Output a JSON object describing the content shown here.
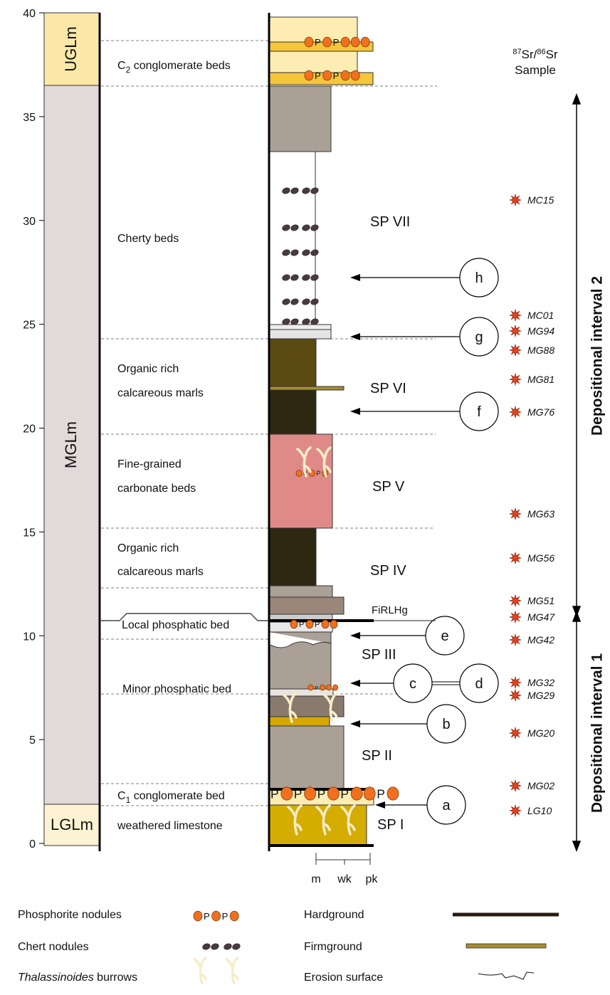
{
  "axis": {
    "ticks": [
      0,
      5,
      10,
      15,
      20,
      25,
      30,
      35,
      40
    ]
  },
  "units": [
    "UGLm",
    "MGLm",
    "LGLm"
  ],
  "descriptions": {
    "c2": {
      "prefix": "C",
      "sub": "2",
      "rest": " conglomerate beds"
    },
    "cherty": "Cherty beds",
    "marls_upper": [
      "Organic rich",
      "calcareous marls"
    ],
    "fine": [
      "Fine-grained",
      "carbonate beds"
    ],
    "marls_lower": [
      "Organic rich",
      "calcareous marls"
    ],
    "local_phos": "Local phosphatic bed",
    "minor_phos": "Minor phosphatic bed",
    "c1": {
      "prefix": "C",
      "sub": "1",
      "rest": " conglomerate bed"
    },
    "weathered": "weathered limestone"
  },
  "sequences": [
    "SP VII",
    "SP VI",
    "SP V",
    "SP IV",
    "SP III",
    "SP II",
    "SP I"
  ],
  "firlhg": "FiRLHg",
  "markers": [
    "a",
    "b",
    "c",
    "d",
    "e",
    "f",
    "g",
    "h"
  ],
  "nodule_letter": "P",
  "sample_header": {
    "sup1": "87",
    "text1": "Sr/",
    "sup2": "86",
    "text2": "Sr",
    "line2": "Sample"
  },
  "samples": [
    "MC15",
    "MC01",
    "MG94",
    "MG88",
    "MG81",
    "MG76",
    "MG63",
    "MG56",
    "MG51",
    "MG47",
    "MG42",
    "MG32",
    "MG29",
    "MG20",
    "MG02",
    "LG10"
  ],
  "intervals": [
    "Depositional interval 2",
    "Depositional interval 1"
  ],
  "texture": [
    "m",
    "wk",
    "pk"
  ],
  "legend": {
    "phosphorite": "Phosphorite nodules",
    "chert": "Chert nodules",
    "burrows_italic": "Thalassinoides",
    "burrows_rest": " burrows",
    "hardground": "Hardground",
    "firmground": "Firmground",
    "erosion": "Erosion surface"
  }
}
